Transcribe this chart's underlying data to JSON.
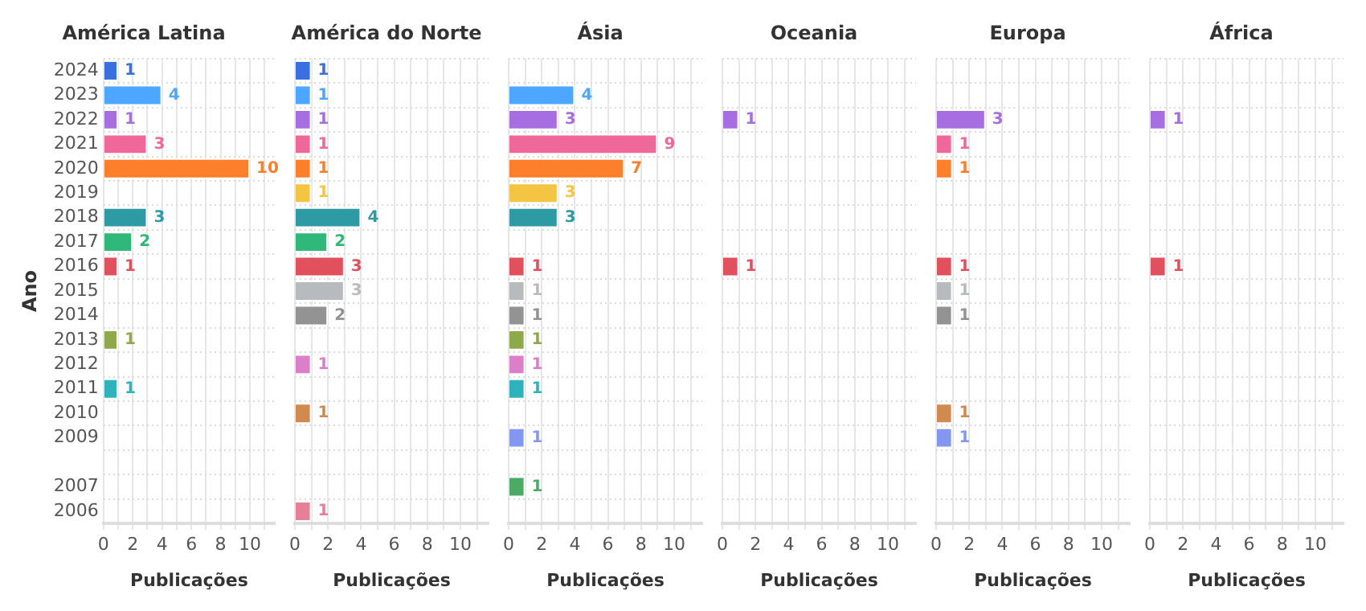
{
  "chart_data": [
    {
      "type": "bar",
      "orientation": "horizontal",
      "title": "América Latina",
      "xlabel": "Publicações",
      "ylabel": "Ano",
      "categories": [
        "2024",
        "2023",
        "2022",
        "2021",
        "2020",
        "2019",
        "2018",
        "2017",
        "2016",
        "2015",
        "2014",
        "2013",
        "2012",
        "2011",
        "2010",
        "2009",
        null,
        "2007",
        "2006"
      ],
      "values": [
        1,
        4,
        1,
        3,
        10,
        null,
        3,
        2,
        1,
        null,
        null,
        1,
        null,
        1,
        null,
        null,
        null,
        null,
        null
      ],
      "colors": [
        "#3a6fe0",
        "#4da6ff",
        "#a66ee0",
        "#f0679a",
        "#fd7f2c",
        "#f4c542",
        "#2e9aa3",
        "#2fb87a",
        "#e0505d",
        "#b8bbbe",
        "#939393",
        "#8fa84a",
        "#dc7fc9",
        "#2fb3bb",
        "#d08a50",
        "#8497f0",
        "#999999",
        "#4aaa66",
        "#e77f98"
      ],
      "xlim": [
        0,
        11.7
      ],
      "xticks": [
        0,
        {
          "value": 1,
          "label": null
        },
        2,
        {
          "value": 3,
          "label": null
        },
        4,
        {
          "value": 5,
          "label": null
        },
        6,
        {
          "value": 7,
          "label": null
        },
        8,
        {
          "value": 9,
          "label": null
        },
        10,
        {
          "value": 11,
          "label": null
        }
      ],
      "data_labels": true,
      "grid": true
    },
    {
      "type": "bar",
      "orientation": "horizontal",
      "title": "América do Norte",
      "xlabel": "Publicações",
      "categories": [
        "2024",
        "2023",
        "2022",
        "2021",
        "2020",
        "2019",
        "2018",
        "2017",
        "2016",
        "2015",
        "2014",
        "2013",
        "2012",
        "2011",
        "2010",
        "2009",
        null,
        "2007",
        "2006"
      ],
      "values": [
        1,
        1,
        1,
        1,
        1,
        1,
        4,
        2,
        3,
        3,
        2,
        null,
        1,
        null,
        1,
        null,
        null,
        null,
        1
      ],
      "colors": [
        "#3a6fe0",
        "#4da6ff",
        "#a66ee0",
        "#f0679a",
        "#fd7f2c",
        "#f4c542",
        "#2e9aa3",
        "#2fb87a",
        "#e0505d",
        "#b8bbbe",
        "#939393",
        "#8fa84a",
        "#dc7fc9",
        "#2fb3bb",
        "#d08a50",
        "#8497f0",
        "#999999",
        "#4aaa66",
        "#e77f98"
      ],
      "xlim": [
        0,
        11.7
      ],
      "xticks": [
        0,
        {
          "value": 1,
          "label": null
        },
        2,
        {
          "value": 3,
          "label": null
        },
        4,
        {
          "value": 5,
          "label": null
        },
        6,
        {
          "value": 7,
          "label": null
        },
        8,
        {
          "value": 9,
          "label": null
        },
        10,
        {
          "value": 11,
          "label": null
        }
      ],
      "data_labels": true,
      "grid": true,
      "tick_labels": "x"
    },
    {
      "type": "bar",
      "orientation": "horizontal",
      "title": "Ásia",
      "xlabel": "Publicações",
      "categories": [
        "2024",
        "2023",
        "2022",
        "2021",
        "2020",
        "2019",
        "2018",
        "2017",
        "2016",
        "2015",
        "2014",
        "2013",
        "2012",
        "2011",
        "2010",
        "2009",
        null,
        "2007",
        "2006"
      ],
      "values": [
        null,
        4,
        3,
        9,
        7,
        3,
        3,
        null,
        1,
        1,
        1,
        1,
        1,
        1,
        null,
        1,
        null,
        1,
        null
      ],
      "colors": [
        "#3a6fe0",
        "#4da6ff",
        "#a66ee0",
        "#f0679a",
        "#fd7f2c",
        "#f4c542",
        "#2e9aa3",
        "#2fb87a",
        "#e0505d",
        "#b8bbbe",
        "#939393",
        "#8fa84a",
        "#dc7fc9",
        "#2fb3bb",
        "#d08a50",
        "#8497f0",
        "#999999",
        "#4aaa66",
        "#e77f98"
      ],
      "xlim": [
        0,
        11.7
      ],
      "xticks": [
        0,
        {
          "value": 1,
          "label": null
        },
        2,
        {
          "value": 3,
          "label": null
        },
        4,
        {
          "value": 5,
          "label": null
        },
        6,
        {
          "value": 7,
          "label": null
        },
        8,
        {
          "value": 9,
          "label": null
        },
        10,
        {
          "value": 11,
          "label": null
        }
      ],
      "data_labels": true,
      "grid": true,
      "tick_labels": "x"
    },
    {
      "type": "bar",
      "orientation": "horizontal",
      "title": "Oceania",
      "xlabel": "Publicações",
      "categories": [
        "2024",
        "2023",
        "2022",
        "2021",
        "2020",
        "2019",
        "2018",
        "2017",
        "2016",
        "2015",
        "2014",
        "2013",
        "2012",
        "2011",
        "2010",
        "2009",
        null,
        "2007",
        "2006"
      ],
      "values": [
        null,
        null,
        1,
        null,
        null,
        null,
        null,
        null,
        1,
        null,
        null,
        null,
        null,
        null,
        null,
        null,
        null,
        null,
        null
      ],
      "colors": [
        "#3a6fe0",
        "#4da6ff",
        "#a66ee0",
        "#f0679a",
        "#fd7f2c",
        "#f4c542",
        "#2e9aa3",
        "#2fb87a",
        "#e0505d",
        "#b8bbbe",
        "#939393",
        "#8fa84a",
        "#dc7fc9",
        "#2fb3bb",
        "#d08a50",
        "#8497f0",
        "#999999",
        "#4aaa66",
        "#e77f98"
      ],
      "xlim": [
        0,
        11.7
      ],
      "xticks": [
        0,
        {
          "value": 1,
          "label": null
        },
        2,
        {
          "value": 3,
          "label": null
        },
        4,
        {
          "value": 5,
          "label": null
        },
        6,
        {
          "value": 7,
          "label": null
        },
        8,
        {
          "value": 9,
          "label": null
        },
        10,
        {
          "value": 11,
          "label": null
        }
      ],
      "data_labels": true,
      "grid": true,
      "tick_labels": "x"
    },
    {
      "type": "bar",
      "orientation": "horizontal",
      "title": "Europa",
      "xlabel": "Publicações",
      "categories": [
        "2024",
        "2023",
        "2022",
        "2021",
        "2020",
        "2019",
        "2018",
        "2017",
        "2016",
        "2015",
        "2014",
        "2013",
        "2012",
        "2011",
        "2010",
        "2009",
        null,
        "2007",
        "2006"
      ],
      "values": [
        null,
        null,
        3,
        1,
        1,
        null,
        null,
        null,
        1,
        1,
        1,
        null,
        null,
        null,
        1,
        1,
        null,
        null,
        null
      ],
      "colors": [
        "#3a6fe0",
        "#4da6ff",
        "#a66ee0",
        "#f0679a",
        "#fd7f2c",
        "#f4c542",
        "#2e9aa3",
        "#2fb87a",
        "#e0505d",
        "#b8bbbe",
        "#939393",
        "#8fa84a",
        "#dc7fc9",
        "#2fb3bb",
        "#d08a50",
        "#8497f0",
        "#999999",
        "#4aaa66",
        "#e77f98"
      ],
      "xlim": [
        0,
        11.7
      ],
      "xticks": [
        0,
        {
          "value": 1,
          "label": null
        },
        2,
        {
          "value": 3,
          "label": null
        },
        4,
        {
          "value": 5,
          "label": null
        },
        6,
        {
          "value": 7,
          "label": null
        },
        8,
        {
          "value": 9,
          "label": null
        },
        10,
        {
          "value": 11,
          "label": null
        }
      ],
      "data_labels": true,
      "grid": true,
      "tick_labels": "x"
    },
    {
      "type": "bar",
      "orientation": "horizontal",
      "title": "África",
      "xlabel": "Publicações",
      "categories": [
        "2024",
        "2023",
        "2022",
        "2021",
        "2020",
        "2019",
        "2018",
        "2017",
        "2016",
        "2015",
        "2014",
        "2013",
        "2012",
        "2011",
        "2010",
        "2009",
        null,
        "2007",
        "2006"
      ],
      "values": [
        null,
        null,
        1,
        null,
        null,
        null,
        null,
        null,
        1,
        null,
        null,
        null,
        null,
        null,
        null,
        null,
        null,
        null,
        null
      ],
      "colors": [
        "#3a6fe0",
        "#4da6ff",
        "#a66ee0",
        "#f0679a",
        "#fd7f2c",
        "#f4c542",
        "#2e9aa3",
        "#2fb87a",
        "#e0505d",
        "#b8bbbe",
        "#939393",
        "#8fa84a",
        "#dc7fc9",
        "#2fb3bb",
        "#d08a50",
        "#8497f0",
        "#999999",
        "#4aaa66",
        "#e77f98"
      ],
      "xlim": [
        0,
        11.7
      ],
      "xticks": [
        0,
        {
          "value": 1,
          "label": null
        },
        2,
        {
          "value": 3,
          "label": null
        },
        4,
        {
          "value": 5,
          "label": null
        },
        6,
        {
          "value": 7,
          "label": null
        },
        8,
        {
          "value": 9,
          "label": null
        },
        10,
        {
          "value": 11,
          "label": null
        }
      ],
      "data_labels": true,
      "grid": true,
      "tick_labels": "x"
    }
  ]
}
